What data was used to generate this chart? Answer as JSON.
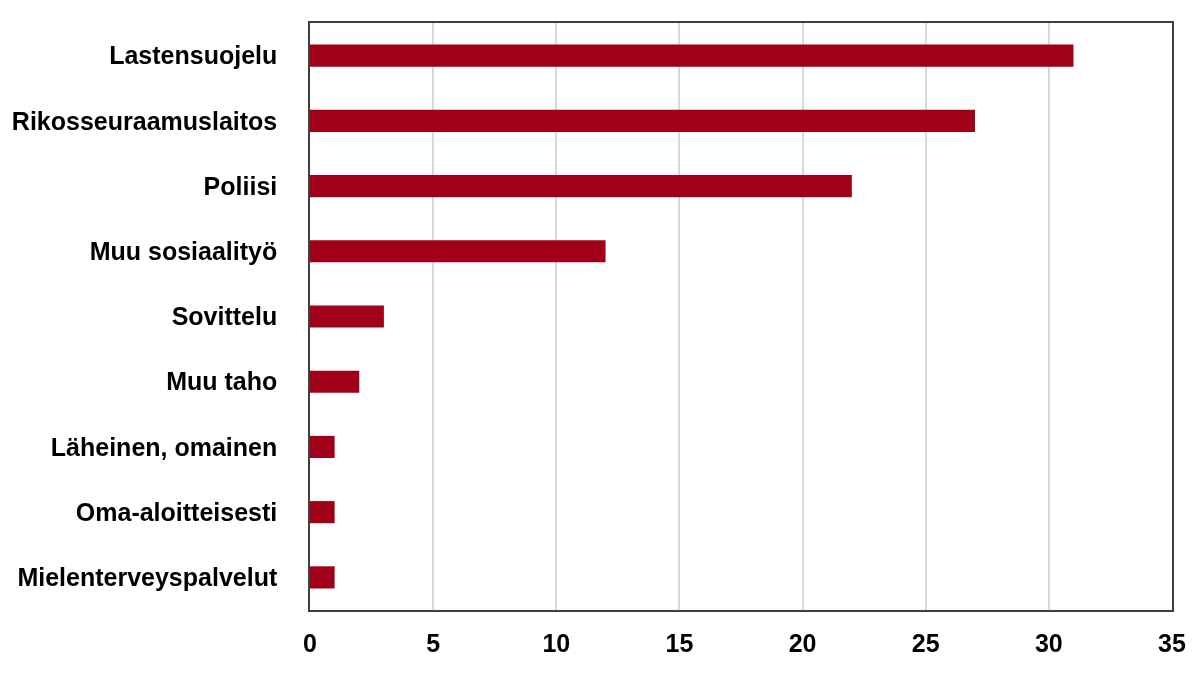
{
  "chart_data": {
    "type": "bar",
    "orientation": "horizontal",
    "categories": [
      "Lastensuojelu",
      "Rikosseuraamuslaitos",
      "Poliisi",
      "Muu sosiaalityö",
      "Sovittelu",
      "Muu taho",
      "Läheinen, omainen",
      "Oma-aloitteisesti",
      "Mielenterveyspalvelut"
    ],
    "values": [
      31,
      27,
      22,
      12,
      3,
      2,
      1,
      1,
      1
    ],
    "color": "#a00018",
    "xlim": [
      0,
      35
    ],
    "xticks": [
      0,
      5,
      10,
      15,
      20,
      25,
      30,
      35
    ],
    "grid": "x"
  }
}
